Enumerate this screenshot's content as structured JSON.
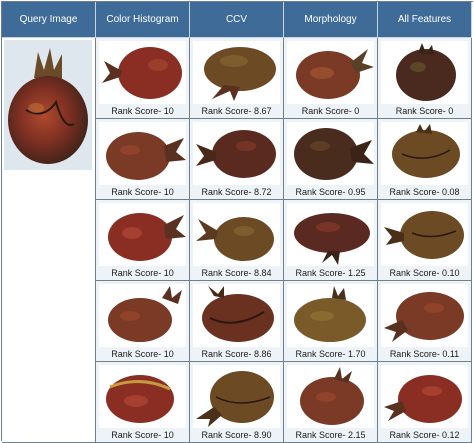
{
  "headers": [
    "Query Image",
    "Color Histogram",
    "CCV",
    "Morphology",
    "All Features"
  ],
  "query": {
    "label": "Query Image",
    "icon": "pomegranate-query-image"
  },
  "columns": [
    {
      "name": "Color Histogram",
      "scores": [
        "Rank Score- 10",
        "Rank Score- 10",
        "Rank Score- 10",
        "Rank Score- 10",
        "Rank Score- 10"
      ]
    },
    {
      "name": "CCV",
      "scores": [
        "Rank Score- 8.67",
        "Rank Score- 8.72",
        "Rank Score- 8.84",
        "Rank Score- 8.86",
        "Rank Score- 8.90"
      ]
    },
    {
      "name": "Morphology",
      "scores": [
        "Rank Score- 0",
        "Rank Score- 0.95",
        "Rank Score- 1.25",
        "Rank Score- 1.70",
        "Rank Score- 2.15"
      ]
    },
    {
      "name": "All Features",
      "scores": [
        "Rank Score- 0",
        "Rank Score- 0.08",
        "Rank Score- 0.10",
        "Rank Score- 0.11",
        "Rank Score- 0.12"
      ]
    }
  ],
  "colors": {
    "header_bg": "#3f6b99",
    "cell_bg": "#eef3f8",
    "fruit_dark": "#4a2a1e",
    "fruit_red": "#8a2e24",
    "fruit_olive": "#6b5a2e"
  }
}
